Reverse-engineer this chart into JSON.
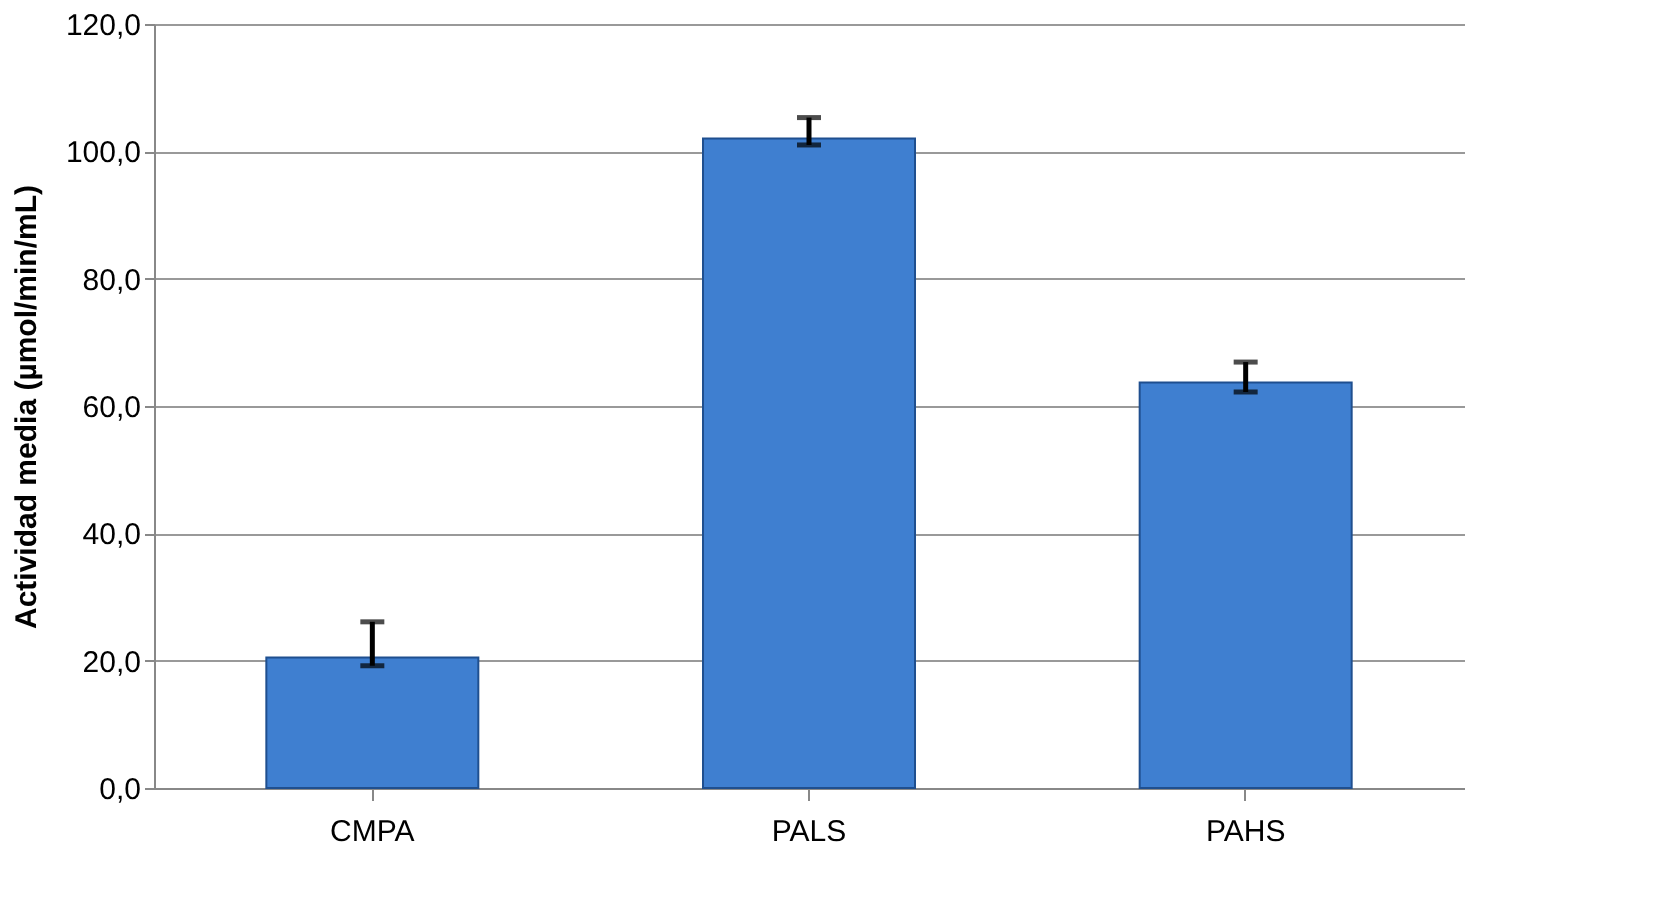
{
  "chart_data": {
    "type": "bar",
    "ylabel": "Actividad media  (µmol/min/mL)",
    "categories": [
      "CMPA",
      "PALS",
      "PAHS"
    ],
    "values": [
      20.5,
      102.0,
      63.7
    ],
    "color": "#3f7fd0",
    "errors": [
      [
        19.2,
        26.1
      ],
      [
        101.0,
        105.3
      ],
      [
        62.2,
        66.9
      ]
    ],
    "ylim": [
      0,
      120
    ],
    "yticks": [
      {
        "value": 0,
        "label": "0,0"
      },
      {
        "value": 20,
        "label": "20,0"
      },
      {
        "value": 40,
        "label": "40,0"
      },
      {
        "value": 60,
        "label": "60,0"
      },
      {
        "value": 80,
        "label": "80,0"
      },
      {
        "value": 100,
        "label": "100,0"
      },
      {
        "value": 120,
        "label": "120,0"
      }
    ],
    "grid": "y"
  }
}
